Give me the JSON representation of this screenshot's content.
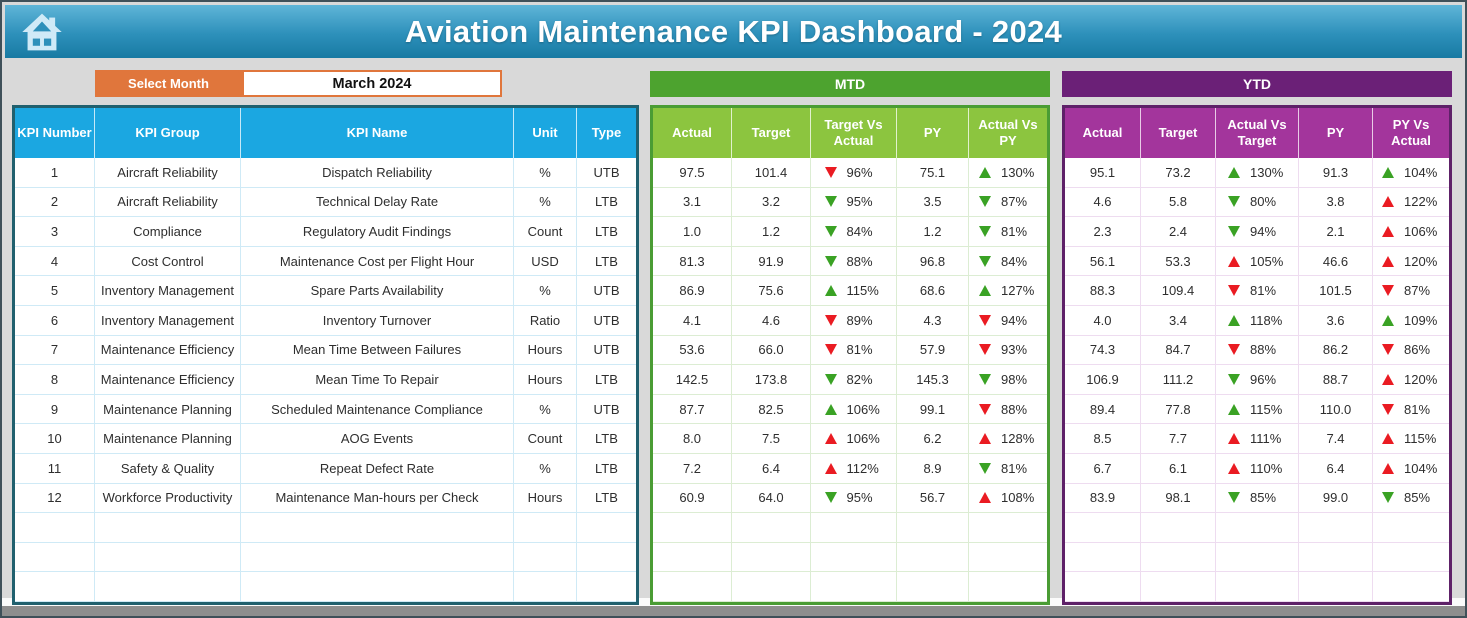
{
  "header": {
    "title": "Aviation Maintenance KPI Dashboard - 2024",
    "home_icon": "home-icon"
  },
  "controls": {
    "select_month_label": "Select Month",
    "selected_month": "March 2024"
  },
  "colors": {
    "header_gradient_top": "#5fb5d8",
    "header_gradient_bottom": "#187aa3",
    "accent_orange": "#e0763c",
    "kpi_header_blue": "#1ba7e1",
    "kpi_border_teal": "#20606e",
    "mtd_banner_green": "#4da32f",
    "mtd_header_green": "#8cc53f",
    "ytd_banner_purple": "#6b2077",
    "ytd_header_magenta": "#a3359c",
    "positive_green": "#3aa224",
    "negative_red": "#ea1b22"
  },
  "kpi_table": {
    "headers": [
      "KPI Number",
      "KPI Group",
      "KPI Name",
      "Unit",
      "Type"
    ]
  },
  "mtd_table": {
    "banner": "MTD",
    "headers": [
      "Actual",
      "Target",
      "Target Vs Actual",
      "PY",
      "Actual Vs PY"
    ]
  },
  "ytd_table": {
    "banner": "YTD",
    "headers": [
      "Actual",
      "Target",
      "Actual Vs Target",
      "PY",
      "PY Vs Actual"
    ]
  },
  "empty_rows": 3,
  "rows": [
    {
      "num": "1",
      "group": "Aircraft Reliability",
      "name": "Dispatch Reliability",
      "unit": "%",
      "type": "UTB",
      "mtd": {
        "actual": "97.5",
        "target": "101.4",
        "target_vs_actual": {
          "dir": "down",
          "color": "red",
          "value": "96%"
        },
        "py": "75.1",
        "actual_vs_py": {
          "dir": "up",
          "color": "green",
          "value": "130%"
        }
      },
      "ytd": {
        "actual": "95.1",
        "target": "73.2",
        "actual_vs_target": {
          "dir": "up",
          "color": "green",
          "value": "130%"
        },
        "py": "91.3",
        "py_vs_actual": {
          "dir": "up",
          "color": "green",
          "value": "104%"
        }
      }
    },
    {
      "num": "2",
      "group": "Aircraft Reliability",
      "name": "Technical Delay Rate",
      "unit": "%",
      "type": "LTB",
      "mtd": {
        "actual": "3.1",
        "target": "3.2",
        "target_vs_actual": {
          "dir": "down",
          "color": "green",
          "value": "95%"
        },
        "py": "3.5",
        "actual_vs_py": {
          "dir": "down",
          "color": "green",
          "value": "87%"
        }
      },
      "ytd": {
        "actual": "4.6",
        "target": "5.8",
        "actual_vs_target": {
          "dir": "down",
          "color": "green",
          "value": "80%"
        },
        "py": "3.8",
        "py_vs_actual": {
          "dir": "up",
          "color": "red",
          "value": "122%"
        }
      }
    },
    {
      "num": "3",
      "group": "Compliance",
      "name": "Regulatory Audit Findings",
      "unit": "Count",
      "type": "LTB",
      "mtd": {
        "actual": "1.0",
        "target": "1.2",
        "target_vs_actual": {
          "dir": "down",
          "color": "green",
          "value": "84%"
        },
        "py": "1.2",
        "actual_vs_py": {
          "dir": "down",
          "color": "green",
          "value": "81%"
        }
      },
      "ytd": {
        "actual": "2.3",
        "target": "2.4",
        "actual_vs_target": {
          "dir": "down",
          "color": "green",
          "value": "94%"
        },
        "py": "2.1",
        "py_vs_actual": {
          "dir": "up",
          "color": "red",
          "value": "106%"
        }
      }
    },
    {
      "num": "4",
      "group": "Cost Control",
      "name": "Maintenance Cost per Flight Hour",
      "unit": "USD",
      "type": "LTB",
      "mtd": {
        "actual": "81.3",
        "target": "91.9",
        "target_vs_actual": {
          "dir": "down",
          "color": "green",
          "value": "88%"
        },
        "py": "96.8",
        "actual_vs_py": {
          "dir": "down",
          "color": "green",
          "value": "84%"
        }
      },
      "ytd": {
        "actual": "56.1",
        "target": "53.3",
        "actual_vs_target": {
          "dir": "up",
          "color": "red",
          "value": "105%"
        },
        "py": "46.6",
        "py_vs_actual": {
          "dir": "up",
          "color": "red",
          "value": "120%"
        }
      }
    },
    {
      "num": "5",
      "group": "Inventory Management",
      "name": "Spare Parts Availability",
      "unit": "%",
      "type": "UTB",
      "mtd": {
        "actual": "86.9",
        "target": "75.6",
        "target_vs_actual": {
          "dir": "up",
          "color": "green",
          "value": "115%"
        },
        "py": "68.6",
        "actual_vs_py": {
          "dir": "up",
          "color": "green",
          "value": "127%"
        }
      },
      "ytd": {
        "actual": "88.3",
        "target": "109.4",
        "actual_vs_target": {
          "dir": "down",
          "color": "red",
          "value": "81%"
        },
        "py": "101.5",
        "py_vs_actual": {
          "dir": "down",
          "color": "red",
          "value": "87%"
        }
      }
    },
    {
      "num": "6",
      "group": "Inventory Management",
      "name": "Inventory Turnover",
      "unit": "Ratio",
      "type": "UTB",
      "mtd": {
        "actual": "4.1",
        "target": "4.6",
        "target_vs_actual": {
          "dir": "down",
          "color": "red",
          "value": "89%"
        },
        "py": "4.3",
        "actual_vs_py": {
          "dir": "down",
          "color": "red",
          "value": "94%"
        }
      },
      "ytd": {
        "actual": "4.0",
        "target": "3.4",
        "actual_vs_target": {
          "dir": "up",
          "color": "green",
          "value": "118%"
        },
        "py": "3.6",
        "py_vs_actual": {
          "dir": "up",
          "color": "green",
          "value": "109%"
        }
      }
    },
    {
      "num": "7",
      "group": "Maintenance Efficiency",
      "name": "Mean Time Between Failures",
      "unit": "Hours",
      "type": "UTB",
      "mtd": {
        "actual": "53.6",
        "target": "66.0",
        "target_vs_actual": {
          "dir": "down",
          "color": "red",
          "value": "81%"
        },
        "py": "57.9",
        "actual_vs_py": {
          "dir": "down",
          "color": "red",
          "value": "93%"
        }
      },
      "ytd": {
        "actual": "74.3",
        "target": "84.7",
        "actual_vs_target": {
          "dir": "down",
          "color": "red",
          "value": "88%"
        },
        "py": "86.2",
        "py_vs_actual": {
          "dir": "down",
          "color": "red",
          "value": "86%"
        }
      }
    },
    {
      "num": "8",
      "group": "Maintenance Efficiency",
      "name": "Mean Time To Repair",
      "unit": "Hours",
      "type": "LTB",
      "mtd": {
        "actual": "142.5",
        "target": "173.8",
        "target_vs_actual": {
          "dir": "down",
          "color": "green",
          "value": "82%"
        },
        "py": "145.3",
        "actual_vs_py": {
          "dir": "down",
          "color": "green",
          "value": "98%"
        }
      },
      "ytd": {
        "actual": "106.9",
        "target": "111.2",
        "actual_vs_target": {
          "dir": "down",
          "color": "green",
          "value": "96%"
        },
        "py": "88.7",
        "py_vs_actual": {
          "dir": "up",
          "color": "red",
          "value": "120%"
        }
      }
    },
    {
      "num": "9",
      "group": "Maintenance Planning",
      "name": "Scheduled Maintenance Compliance",
      "unit": "%",
      "type": "UTB",
      "mtd": {
        "actual": "87.7",
        "target": "82.5",
        "target_vs_actual": {
          "dir": "up",
          "color": "green",
          "value": "106%"
        },
        "py": "99.1",
        "actual_vs_py": {
          "dir": "down",
          "color": "red",
          "value": "88%"
        }
      },
      "ytd": {
        "actual": "89.4",
        "target": "77.8",
        "actual_vs_target": {
          "dir": "up",
          "color": "green",
          "value": "115%"
        },
        "py": "110.0",
        "py_vs_actual": {
          "dir": "down",
          "color": "red",
          "value": "81%"
        }
      }
    },
    {
      "num": "10",
      "group": "Maintenance Planning",
      "name": "AOG Events",
      "unit": "Count",
      "type": "LTB",
      "mtd": {
        "actual": "8.0",
        "target": "7.5",
        "target_vs_actual": {
          "dir": "up",
          "color": "red",
          "value": "106%"
        },
        "py": "6.2",
        "actual_vs_py": {
          "dir": "up",
          "color": "red",
          "value": "128%"
        }
      },
      "ytd": {
        "actual": "8.5",
        "target": "7.7",
        "actual_vs_target": {
          "dir": "up",
          "color": "red",
          "value": "111%"
        },
        "py": "7.4",
        "py_vs_actual": {
          "dir": "up",
          "color": "red",
          "value": "115%"
        }
      }
    },
    {
      "num": "11",
      "group": "Safety & Quality",
      "name": "Repeat Defect Rate",
      "unit": "%",
      "type": "LTB",
      "mtd": {
        "actual": "7.2",
        "target": "6.4",
        "target_vs_actual": {
          "dir": "up",
          "color": "red",
          "value": "112%"
        },
        "py": "8.9",
        "actual_vs_py": {
          "dir": "down",
          "color": "green",
          "value": "81%"
        }
      },
      "ytd": {
        "actual": "6.7",
        "target": "6.1",
        "actual_vs_target": {
          "dir": "up",
          "color": "red",
          "value": "110%"
        },
        "py": "6.4",
        "py_vs_actual": {
          "dir": "up",
          "color": "red",
          "value": "104%"
        }
      }
    },
    {
      "num": "12",
      "group": "Workforce Productivity",
      "name": "Maintenance Man-hours per Check",
      "unit": "Hours",
      "type": "LTB",
      "mtd": {
        "actual": "60.9",
        "target": "64.0",
        "target_vs_actual": {
          "dir": "down",
          "color": "green",
          "value": "95%"
        },
        "py": "56.7",
        "actual_vs_py": {
          "dir": "up",
          "color": "red",
          "value": "108%"
        }
      },
      "ytd": {
        "actual": "83.9",
        "target": "98.1",
        "actual_vs_target": {
          "dir": "down",
          "color": "green",
          "value": "85%"
        },
        "py": "99.0",
        "py_vs_actual": {
          "dir": "down",
          "color": "green",
          "value": "85%"
        }
      }
    }
  ]
}
